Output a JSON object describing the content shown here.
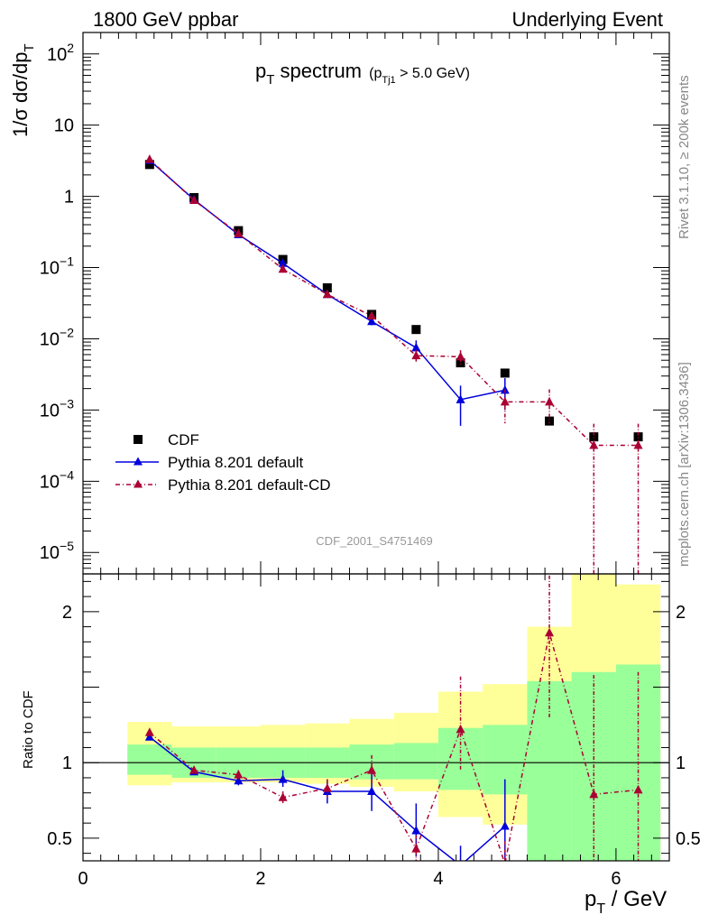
{
  "header": {
    "left": "1800 GeV ppbar",
    "right": "Underlying Event"
  },
  "title": {
    "main": "p",
    "main_sub": "T",
    "main_rest": " spectrum",
    "cut_open": "(p",
    "cut_sub": "Tj1",
    "cut_rest": " > 5.0 GeV)"
  },
  "side_text": {
    "rivet": "Rivet 3.1.10, ≥ 200k events",
    "mcplots": "mcplots.cern.ch [arXiv:1306.3436]"
  },
  "analysis_id": "CDF_2001_S4751469",
  "axes": {
    "ylabel_main": "1/σ dσ/dp",
    "ylabel_main_sub": "T",
    "ylabel_ratio": "Ratio to CDF",
    "xlabel": "p",
    "xlabel_sub": "T",
    "xlabel_rest": " / GeV"
  },
  "colors": {
    "cdf": "#000000",
    "pythia_default": "#0000dd",
    "pythia_cd": "#aa0033",
    "band_inner": "#99ff99",
    "band_outer": "#ffff99"
  },
  "chart_data": [
    {
      "type": "scatter",
      "name": "main",
      "x_range": [
        0,
        6.6
      ],
      "y_range": [
        5e-06,
        200
      ],
      "y_scale": "log",
      "x_ticks": [
        "0",
        "2",
        "4",
        "6"
      ],
      "y_tick_labels": [
        {
          "v": 1e-05,
          "base": "10",
          "exp": "−5"
        },
        {
          "v": 0.0001,
          "base": "10",
          "exp": "−4"
        },
        {
          "v": 0.001,
          "base": "10",
          "exp": "−3"
        },
        {
          "v": 0.01,
          "base": "10",
          "exp": "−2"
        },
        {
          "v": 0.1,
          "base": "10",
          "exp": "−1"
        },
        {
          "v": 1,
          "base": "1",
          "exp": ""
        },
        {
          "v": 10,
          "base": "10",
          "exp": ""
        },
        {
          "v": 100,
          "base": "10",
          "exp": "2"
        }
      ],
      "legend_position": "bottom-left",
      "series": [
        {
          "name": "CDF",
          "style": "square",
          "points": [
            {
              "x": 0.75,
              "y": 2.8
            },
            {
              "x": 1.25,
              "y": 0.96
            },
            {
              "x": 1.75,
              "y": 0.33
            },
            {
              "x": 2.25,
              "y": 0.13
            },
            {
              "x": 2.75,
              "y": 0.052
            },
            {
              "x": 3.25,
              "y": 0.022
            },
            {
              "x": 3.75,
              "y": 0.0135
            },
            {
              "x": 4.25,
              "y": 0.0046
            },
            {
              "x": 4.75,
              "y": 0.0033
            },
            {
              "x": 5.25,
              "y": 0.0007
            },
            {
              "x": 5.75,
              "y": 0.00042
            },
            {
              "x": 6.25,
              "y": 0.00042
            }
          ]
        },
        {
          "name": "Pythia 8.201 default",
          "style": "solid",
          "points": [
            {
              "x": 0.75,
              "y": 3.2,
              "lo": 3.2,
              "hi": 3.2
            },
            {
              "x": 1.25,
              "y": 0.9,
              "lo": 0.9,
              "hi": 0.9
            },
            {
              "x": 1.75,
              "y": 0.29,
              "lo": 0.28,
              "hi": 0.3
            },
            {
              "x": 2.25,
              "y": 0.115,
              "lo": 0.108,
              "hi": 0.122
            },
            {
              "x": 2.75,
              "y": 0.042,
              "lo": 0.039,
              "hi": 0.045
            },
            {
              "x": 3.25,
              "y": 0.0175,
              "lo": 0.0155,
              "hi": 0.0195
            },
            {
              "x": 3.75,
              "y": 0.0075,
              "lo": 0.006,
              "hi": 0.0095
            },
            {
              "x": 4.25,
              "y": 0.0014,
              "lo": 0.0006,
              "hi": 0.0022
            },
            {
              "x": 4.75,
              "y": 0.0019,
              "lo": 0.001,
              "hi": 0.0028
            }
          ]
        },
        {
          "name": "Pythia 8.201 default-CD",
          "style": "dashdot",
          "points": [
            {
              "x": 0.75,
              "y": 3.3,
              "lo": 3.3,
              "hi": 3.3
            },
            {
              "x": 1.25,
              "y": 0.88,
              "lo": 0.88,
              "hi": 0.88
            },
            {
              "x": 1.75,
              "y": 0.3,
              "lo": 0.29,
              "hi": 0.31
            },
            {
              "x": 2.25,
              "y": 0.095,
              "lo": 0.09,
              "hi": 0.1
            },
            {
              "x": 2.75,
              "y": 0.042,
              "lo": 0.04,
              "hi": 0.044
            },
            {
              "x": 3.25,
              "y": 0.021,
              "lo": 0.019,
              "hi": 0.023
            },
            {
              "x": 3.75,
              "y": 0.0058,
              "lo": 0.0046,
              "hi": 0.007
            },
            {
              "x": 4.25,
              "y": 0.0056,
              "lo": 0.0043,
              "hi": 0.0069
            },
            {
              "x": 4.75,
              "y": 0.0013,
              "lo": 0.00065,
              "hi": 0.00195
            },
            {
              "x": 5.25,
              "y": 0.0013,
              "lo": 0.00065,
              "hi": 0.00195
            },
            {
              "x": 5.75,
              "y": 0.00032,
              "lo": 1e-06,
              "hi": 0.00064
            },
            {
              "x": 6.25,
              "y": 0.00032,
              "lo": 1e-06,
              "hi": 0.00064
            }
          ]
        }
      ]
    },
    {
      "type": "scatter",
      "name": "ratio",
      "ylabel": "Ratio to CDF",
      "x_range": [
        0,
        6.6
      ],
      "y_range": [
        0.35,
        2.25
      ],
      "x_ticks": [
        "0",
        "2",
        "4",
        "6"
      ],
      "y_ticks": [
        "0.5",
        "1",
        "2"
      ],
      "reference_line": 1,
      "bands": [
        {
          "x0": 0.5,
          "x1": 1.0,
          "inner": [
            0.92,
            1.12
          ],
          "outer": [
            0.85,
            1.27
          ]
        },
        {
          "x0": 1.0,
          "x1": 1.5,
          "inner": [
            0.9,
            1.1
          ],
          "outer": [
            0.87,
            1.24
          ]
        },
        {
          "x0": 1.5,
          "x1": 2.0,
          "inner": [
            0.9,
            1.1
          ],
          "outer": [
            0.87,
            1.24
          ]
        },
        {
          "x0": 2.0,
          "x1": 2.5,
          "inner": [
            0.9,
            1.1
          ],
          "outer": [
            0.87,
            1.25
          ]
        },
        {
          "x0": 2.5,
          "x1": 3.0,
          "inner": [
            0.9,
            1.1
          ],
          "outer": [
            0.86,
            1.26
          ]
        },
        {
          "x0": 3.0,
          "x1": 3.5,
          "inner": [
            0.89,
            1.12
          ],
          "outer": [
            0.84,
            1.29
          ]
        },
        {
          "x0": 3.5,
          "x1": 4.0,
          "inner": [
            0.89,
            1.13
          ],
          "outer": [
            0.81,
            1.33
          ]
        },
        {
          "x0": 4.0,
          "x1": 4.5,
          "inner": [
            0.82,
            1.23
          ],
          "outer": [
            0.64,
            1.47
          ]
        },
        {
          "x0": 4.5,
          "x1": 5.0,
          "inner": [
            0.79,
            1.25
          ],
          "outer": [
            0.59,
            1.52
          ]
        },
        {
          "x0": 5.0,
          "x1": 5.5,
          "inner": [
            0.35,
            1.54
          ],
          "outer": [
            0.35,
            1.9
          ]
        },
        {
          "x0": 5.5,
          "x1": 6.0,
          "inner": [
            0.35,
            1.6
          ],
          "outer": [
            0.35,
            2.25
          ]
        },
        {
          "x0": 6.0,
          "x1": 6.5,
          "inner": [
            0.35,
            1.65
          ],
          "outer": [
            0.35,
            2.18
          ]
        }
      ],
      "series": [
        {
          "name": "Pythia 8.201 default",
          "style": "solid",
          "points": [
            {
              "x": 0.75,
              "y": 1.17,
              "lo": 1.17,
              "hi": 1.17
            },
            {
              "x": 1.25,
              "y": 0.94,
              "lo": 0.93,
              "hi": 0.95
            },
            {
              "x": 1.75,
              "y": 0.88,
              "lo": 0.85,
              "hi": 0.91
            },
            {
              "x": 2.25,
              "y": 0.89,
              "lo": 0.84,
              "hi": 0.95
            },
            {
              "x": 2.75,
              "y": 0.81,
              "lo": 0.73,
              "hi": 0.89
            },
            {
              "x": 3.25,
              "y": 0.81,
              "lo": 0.68,
              "hi": 0.94
            },
            {
              "x": 3.75,
              "y": 0.55,
              "lo": 0.38,
              "hi": 0.73
            },
            {
              "x": 4.25,
              "y": 0.32,
              "lo": 0.2,
              "hi": 0.45
            },
            {
              "x": 4.75,
              "y": 0.58,
              "lo": 0.28,
              "hi": 0.89
            }
          ]
        },
        {
          "name": "Pythia 8.201 default-CD",
          "style": "dashdot",
          "points": [
            {
              "x": 0.75,
              "y": 1.2,
              "lo": 1.2,
              "hi": 1.2
            },
            {
              "x": 1.25,
              "y": 0.95,
              "lo": 0.94,
              "hi": 0.96
            },
            {
              "x": 1.75,
              "y": 0.92,
              "lo": 0.89,
              "hi": 0.95
            },
            {
              "x": 2.25,
              "y": 0.77,
              "lo": 0.73,
              "hi": 0.81
            },
            {
              "x": 2.75,
              "y": 0.83,
              "lo": 0.77,
              "hi": 0.89
            },
            {
              "x": 3.25,
              "y": 0.95,
              "lo": 0.85,
              "hi": 1.05
            },
            {
              "x": 3.75,
              "y": 0.43,
              "lo": 0.35,
              "hi": 0.52
            },
            {
              "x": 4.25,
              "y": 1.22,
              "lo": 0.95,
              "hi": 1.57
            },
            {
              "x": 4.75,
              "y": 0.33,
              "lo": 0.2,
              "hi": 0.48
            },
            {
              "x": 5.25,
              "y": 1.86,
              "lo": 1.3,
              "hi": 2.4
            },
            {
              "x": 5.75,
              "y": 0.79,
              "lo": 0.2,
              "hi": 1.58
            },
            {
              "x": 6.25,
              "y": 0.82,
              "lo": 0.2,
              "hi": 1.6
            }
          ]
        }
      ]
    }
  ]
}
